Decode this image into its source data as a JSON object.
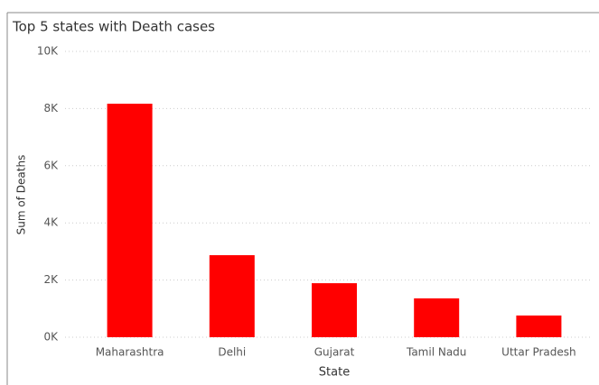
{
  "chart_data": {
    "type": "bar",
    "title": "Top 5 states with Death cases",
    "x_label": "State",
    "y_label": "Sum of Deaths",
    "categories": [
      "Maharashtra",
      "Delhi",
      "Gujarat",
      "Tamil Nadu",
      "Uttar Pradesh"
    ],
    "values": [
      8170,
      2870,
      1890,
      1360,
      760
    ],
    "color": "#ff0000",
    "ylim": [
      0,
      10000
    ],
    "yticks": [
      {
        "value": 0,
        "label": "0K"
      },
      {
        "value": 2000,
        "label": "2K"
      },
      {
        "value": 4000,
        "label": "4K"
      },
      {
        "value": 6000,
        "label": "6K"
      },
      {
        "value": 8000,
        "label": "8K"
      },
      {
        "value": 10000,
        "label": "10K"
      }
    ],
    "grid": true
  }
}
